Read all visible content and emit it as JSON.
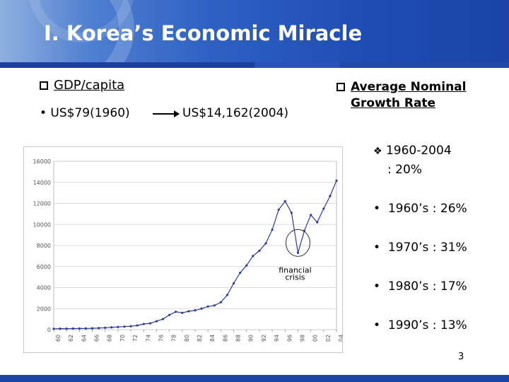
{
  "header": {
    "title": "Ⅰ. Korea’s Economic Miracle"
  },
  "gdp": {
    "heading": "GDP/capita",
    "value_1960": "• US$79(1960)",
    "value_2004": "US$14,162(2004)"
  },
  "growth": {
    "heading_line1": "Average Nominal",
    "heading_line2": "Growth Rate",
    "period": "1960-2004",
    "period_rate": ": 20%",
    "decades": [
      {
        "label": "1960’s : 26%"
      },
      {
        "label": "1970’s : 31%"
      },
      {
        "label": "1980’s : 17%"
      },
      {
        "label": "1990’s : 13%"
      }
    ]
  },
  "slide_number": "3",
  "colors": {
    "header_blue": "#1f4db4",
    "line": "#2a3b9c",
    "footer": "#1a44a6"
  },
  "chart_data": {
    "type": "line",
    "x": [
      "60",
      "61",
      "62",
      "63",
      "64",
      "65",
      "66",
      "67",
      "68",
      "69",
      "70",
      "71",
      "72",
      "73",
      "74",
      "75",
      "76",
      "77",
      "78",
      "79",
      "80",
      "81",
      "82",
      "83",
      "84",
      "85",
      "86",
      "87",
      "88",
      "89",
      "90",
      "91",
      "92",
      "93",
      "94",
      "95",
      "96",
      "97",
      "98",
      "99",
      "00",
      "01",
      "02",
      "03",
      "04"
    ],
    "x_tick_labels": [
      "60",
      "62",
      "64",
      "66",
      "68",
      "70",
      "72",
      "74",
      "76",
      "78",
      "80",
      "82",
      "84",
      "86",
      "88",
      "90",
      "92",
      "94",
      "96",
      "98",
      "00",
      "02",
      "04"
    ],
    "series": [
      {
        "values": [
          79,
          91,
          91,
          103,
          106,
          107,
          130,
          150,
          180,
          220,
          253,
          290,
          320,
          400,
          540,
          600,
          800,
          1010,
          1400,
          1700,
          1600,
          1750,
          1830,
          2000,
          2200,
          2300,
          2600,
          3300,
          4400,
          5400,
          6100,
          7000,
          7500,
          8200,
          9500,
          11400,
          12200,
          11100,
          7300,
          9400,
          10900,
          10200,
          11500,
          12700,
          14162
        ]
      }
    ],
    "ylim": [
      0,
      16000
    ],
    "y_ticks": [
      "0",
      "2000",
      "4000",
      "6000",
      "8000",
      "10000",
      "12000",
      "14000",
      "16000"
    ],
    "annotation": "financial crisis",
    "grid": true
  }
}
